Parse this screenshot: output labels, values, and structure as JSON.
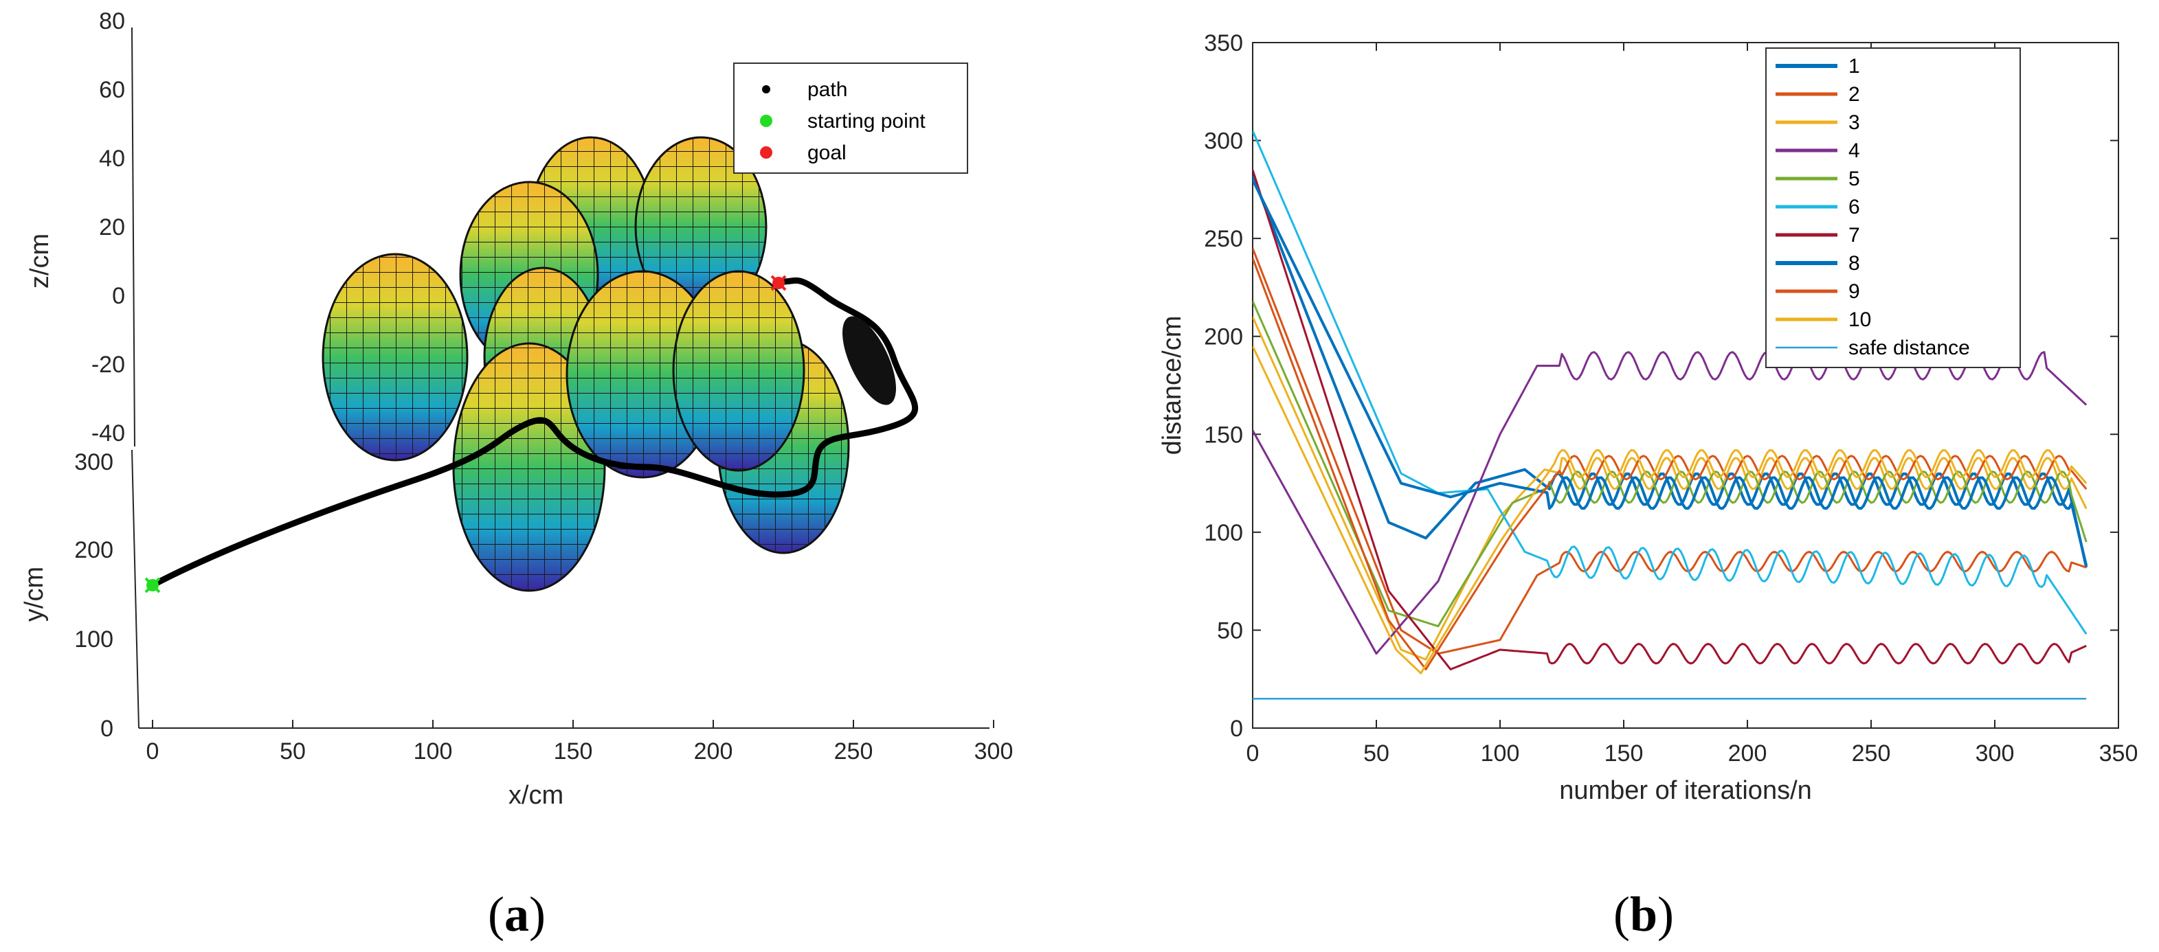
{
  "chart_data": [
    {
      "type": "scatter",
      "subtype": "3d-path-with-ellipsoid-obstacles",
      "panel": "a",
      "xlabel": "x/cm",
      "ylabel": "y/cm",
      "zlabel": "z/cm",
      "x_ticks": [
        "0",
        "50",
        "100",
        "150",
        "200",
        "250",
        "300"
      ],
      "y_ticks": [
        "0",
        "100",
        "200",
        "300"
      ],
      "z_ticks": [
        "-40",
        "-20",
        "0",
        "20",
        "40",
        "60",
        "80"
      ],
      "legend": [
        {
          "label": "path",
          "color": "#000000",
          "marker": "dot"
        },
        {
          "label": "starting point",
          "color": "#22dd22",
          "marker": "asterisk"
        },
        {
          "label": "goal",
          "color": "#ee2222",
          "marker": "asterisk"
        }
      ],
      "obstacle_count": 10,
      "colormap": [
        "#3b1f8f",
        "#1f9ad6",
        "#2fbf71",
        "#c9d93a",
        "#f6b82c"
      ]
    },
    {
      "type": "line",
      "panel": "b",
      "xlabel": "number of iterations/n",
      "ylabel": "distance/cm",
      "xlim": [
        0,
        350
      ],
      "ylim": [
        0,
        350
      ],
      "x_ticks": [
        0,
        50,
        100,
        150,
        200,
        250,
        300,
        350
      ],
      "y_ticks": [
        0,
        50,
        100,
        150,
        200,
        250,
        300,
        350
      ],
      "safe_distance": {
        "name": "safe distance",
        "value": 15,
        "color": "#2a9fd8"
      },
      "series": [
        {
          "name": "1",
          "color": "#0072BD",
          "width": 4,
          "x": [
            0,
            55,
            70,
            90,
            110,
            120,
            330,
            337
          ],
          "y": [
            282,
            105,
            97,
            125,
            132,
            122,
            122,
            82
          ],
          "osc": 8
        },
        {
          "name": "2",
          "color": "#D95319",
          "width": 3,
          "x": [
            0,
            60,
            75,
            100,
            115,
            125,
            330,
            337
          ],
          "y": [
            245,
            50,
            38,
            45,
            78,
            85,
            85,
            82
          ],
          "osc": 5
        },
        {
          "name": "3",
          "color": "#EDB120",
          "width": 3,
          "x": [
            0,
            60,
            70,
            100,
            118,
            125,
            330,
            337
          ],
          "y": [
            210,
            40,
            35,
            108,
            132,
            130,
            130,
            112
          ],
          "osc": 8
        },
        {
          "name": "4",
          "color": "#7E2F8E",
          "width": 3,
          "x": [
            0,
            50,
            75,
            100,
            115,
            125,
            320,
            337
          ],
          "y": [
            152,
            38,
            75,
            150,
            185,
            185,
            185,
            165
          ],
          "osc": 7
        },
        {
          "name": "5",
          "color": "#77AC30",
          "width": 3,
          "x": [
            0,
            55,
            75,
            105,
            120,
            330,
            337
          ],
          "y": [
            218,
            60,
            52,
            115,
            123,
            123,
            95
          ],
          "osc": 8
        },
        {
          "name": "6",
          "color": "#1FB8E6",
          "width": 3,
          "x": [
            0,
            60,
            75,
            95,
            110,
            120,
            320,
            337
          ],
          "y": [
            305,
            130,
            120,
            122,
            90,
            85,
            80,
            48
          ],
          "osc": 8
        },
        {
          "name": "7",
          "color": "#A2142F",
          "width": 3,
          "x": [
            0,
            55,
            80,
            100,
            120,
            330,
            337
          ],
          "y": [
            285,
            70,
            30,
            40,
            38,
            38,
            42
          ],
          "osc": 5
        },
        {
          "name": "8",
          "color": "#0072BD",
          "width": 4,
          "x": [
            0,
            60,
            80,
            100,
            120,
            330,
            337
          ],
          "y": [
            280,
            125,
            118,
            125,
            120,
            120,
            83
          ],
          "osc": 8
        },
        {
          "name": "9",
          "color": "#D95319",
          "width": 3,
          "x": [
            0,
            55,
            70,
            105,
            125,
            330,
            337
          ],
          "y": [
            240,
            55,
            30,
            100,
            133,
            133,
            122
          ],
          "osc": 6
        },
        {
          "name": "10",
          "color": "#EDB120",
          "width": 3,
          "x": [
            0,
            58,
            68,
            100,
            122,
            330,
            337
          ],
          "y": [
            195,
            40,
            28,
            95,
            135,
            135,
            125
          ],
          "osc": 7
        }
      ]
    }
  ],
  "captions": {
    "a": "(a)",
    "b": "(b)"
  }
}
